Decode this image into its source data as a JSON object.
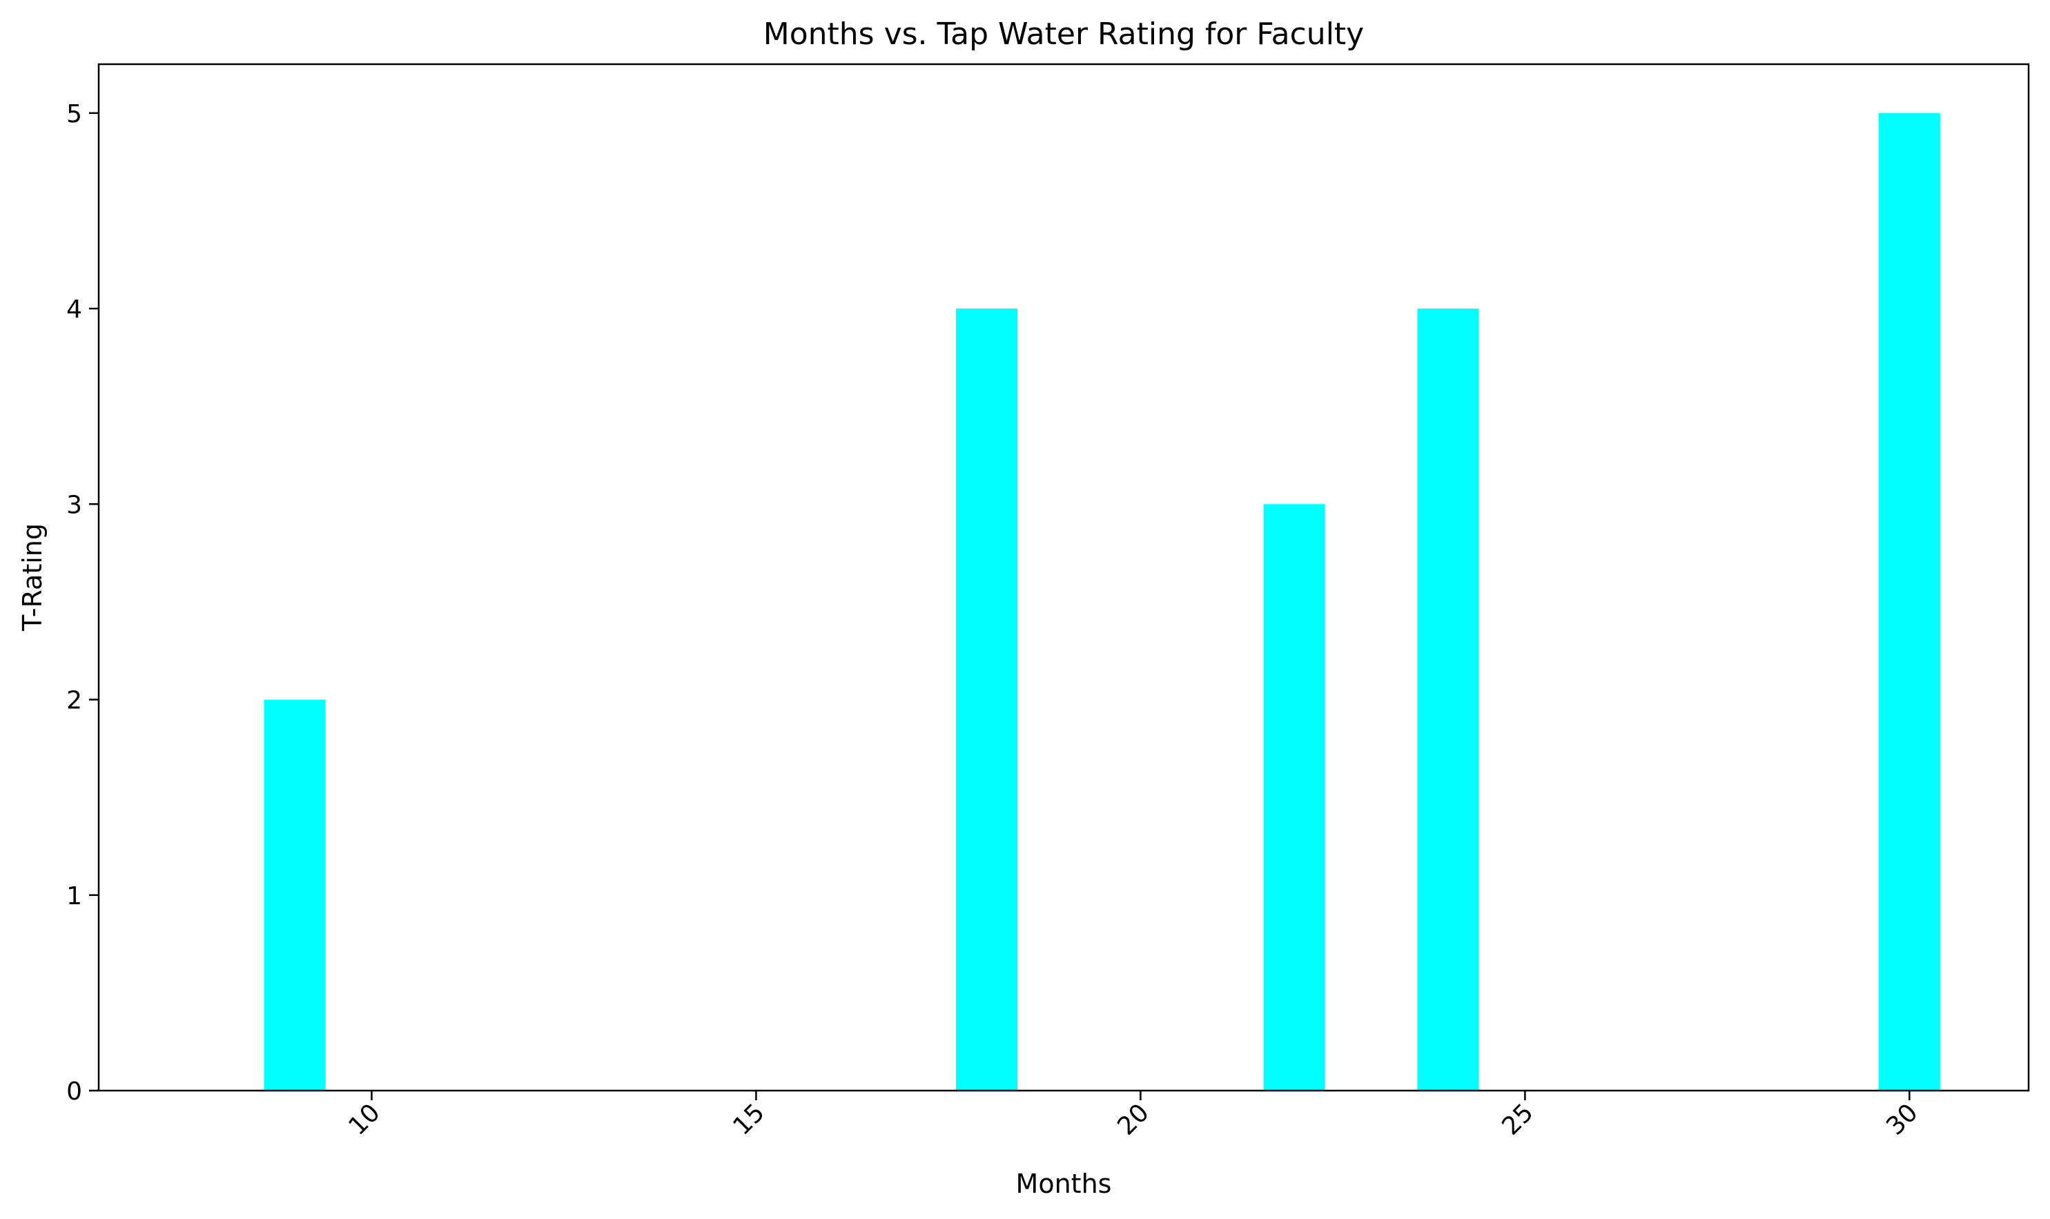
{
  "chart_data": {
    "type": "bar",
    "title": "Months vs. Tap Water Rating for Faculty",
    "xlabel": "Months",
    "ylabel": "T-Rating",
    "x": [
      9,
      18,
      22,
      24,
      30
    ],
    "values": [
      2,
      4,
      3,
      4,
      5
    ],
    "bar_width": 0.8,
    "xlim": [
      6.45,
      31.55
    ],
    "ylim": [
      0,
      5.25
    ],
    "xticks": [
      10,
      15,
      20,
      25,
      30
    ],
    "xtick_labels": [
      "10",
      "15",
      "20",
      "25",
      "30"
    ],
    "xtick_rotation": -45,
    "yticks": [
      0,
      1,
      2,
      3,
      4,
      5
    ],
    "ytick_labels": [
      "0",
      "1",
      "2",
      "3",
      "4",
      "5"
    ],
    "grid": false,
    "legend": "none",
    "bar_color": "#00ffff",
    "axis_color": "#000000"
  }
}
